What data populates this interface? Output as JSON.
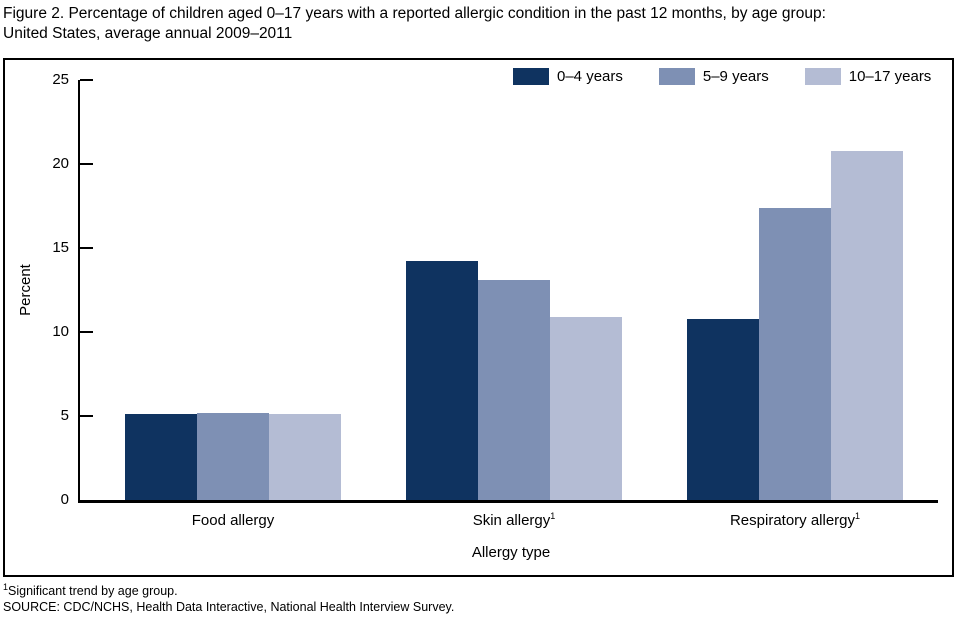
{
  "title": {
    "line1": "Figure 2. Percentage of children aged 0–17 years with a reported allergic condition in the past 12 months, by age group:",
    "line2": "United States, average annual 2009–2011"
  },
  "chart_data": {
    "type": "bar",
    "title": "Figure 2. Percentage of children aged 0–17 years with a reported allergic condition in the past 12 months, by age group: United States, average annual 2009–2011",
    "categories": [
      "Food allergy",
      "Skin allergy",
      "Respiratory allergy"
    ],
    "category_sups": [
      "",
      "1",
      "1"
    ],
    "series": [
      {
        "name": "0–4 years",
        "color": "#0f3360",
        "values": [
          5.1,
          14.2,
          10.8
        ]
      },
      {
        "name": "5–9 years",
        "color": "#7e90b4",
        "values": [
          5.2,
          13.1,
          17.4
        ]
      },
      {
        "name": "10–17 years",
        "color": "#b4bcd4",
        "values": [
          5.1,
          10.9,
          20.8
        ]
      }
    ],
    "xlabel": "Allergy type",
    "ylabel": "Percent",
    "ylim": [
      0,
      25
    ],
    "yticks": [
      0,
      5,
      10,
      15,
      20,
      25
    ],
    "grid": false,
    "legend_position": "top-right"
  },
  "footnotes": [
    {
      "sup": "1",
      "text": "Significant trend by age group."
    },
    {
      "sup": "",
      "text": "SOURCE: CDC/NCHS, Health Data Interactive, National Health Interview Survey."
    }
  ],
  "colors": {
    "axis": "#000000",
    "background": "#ffffff",
    "frame_border": "#000000"
  }
}
